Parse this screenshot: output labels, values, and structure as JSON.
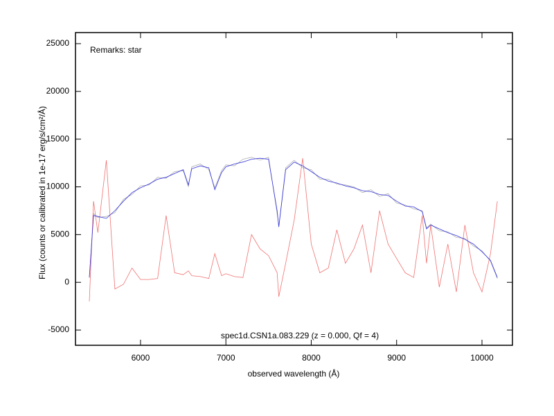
{
  "chart_data": {
    "type": "line",
    "annotations": [
      "Remarks: star",
      "spec1d.CSN1a.083.229 (z = 0.000, Qf = 4)"
    ],
    "x_label": "observed wavelength (Å)",
    "y_label": "Flux (counts or calibrated in 1e-17 erg/s/cm²/Å)",
    "x": [
      5400,
      5450,
      5500,
      5600,
      5700,
      5800,
      5900,
      6000,
      6100,
      6200,
      6300,
      6400,
      6500,
      6560,
      6600,
      6700,
      6800,
      6870,
      6950,
      7000,
      7100,
      7200,
      7300,
      7400,
      7500,
      7600,
      7620,
      7700,
      7800,
      7900,
      8000,
      8100,
      8200,
      8300,
      8400,
      8500,
      8600,
      8700,
      8800,
      8900,
      9000,
      9100,
      9200,
      9300,
      9350,
      9400,
      9500,
      9600,
      9700,
      9800,
      9900,
      10000,
      10100,
      10180
    ],
    "series": [
      {
        "color": "#b0b0b0",
        "values": [
          500,
          7200,
          6800,
          6900,
          7300,
          8700,
          9200,
          10100,
          10200,
          11000,
          10900,
          11600,
          11700,
          10000,
          12100,
          12400,
          11800,
          9900,
          11700,
          12300,
          12200,
          12900,
          13100,
          12800,
          13100,
          7200,
          5900,
          12000,
          12800,
          12000,
          11800,
          10800,
          10800,
          10300,
          10200,
          10000,
          9400,
          9700,
          9000,
          9300,
          8300,
          8100,
          7700,
          7500,
          5700,
          6100,
          5400,
          5300,
          4700,
          4600,
          3800,
          3300,
          2200,
          400
        ]
      },
      {
        "color": "#f07070",
        "values": [
          -2000,
          8500,
          5200,
          12800,
          -700,
          -200,
          1500,
          300,
          300,
          400,
          7000,
          1000,
          800,
          1200,
          700,
          600,
          400,
          3000,
          700,
          900,
          600,
          500,
          5000,
          3500,
          2800,
          1000,
          -1500,
          2000,
          6500,
          13000,
          4000,
          1000,
          1500,
          5500,
          2000,
          3500,
          6000,
          1000,
          7500,
          4000,
          2500,
          1000,
          500,
          7000,
          2000,
          6000,
          -500,
          4000,
          -1000,
          6000,
          1000,
          -1000,
          3000,
          8500
        ]
      },
      {
        "color": "#3333dd",
        "values": [
          500,
          7000,
          6900,
          6700,
          7500,
          8500,
          9400,
          9900,
          10300,
          10800,
          11000,
          11400,
          11800,
          10200,
          11900,
          12200,
          12000,
          9700,
          11500,
          12100,
          12400,
          12600,
          12900,
          13000,
          12900,
          7500,
          5800,
          11800,
          12600,
          12200,
          11600,
          11000,
          10600,
          10400,
          10100,
          9900,
          9600,
          9500,
          9200,
          9100,
          8500,
          8000,
          7900,
          7400,
          5600,
          6000,
          5600,
          5200,
          4900,
          4500,
          4000,
          3200,
          2300,
          500
        ]
      }
    ],
    "xlim": [
      5238,
      10357
    ],
    "ylim": [
      -6594,
      26160
    ],
    "xticks": [
      6000,
      7000,
      8000,
      9000,
      10000
    ],
    "yticks": [
      -5000,
      0,
      5000,
      10000,
      15000,
      20000,
      25000
    ]
  }
}
